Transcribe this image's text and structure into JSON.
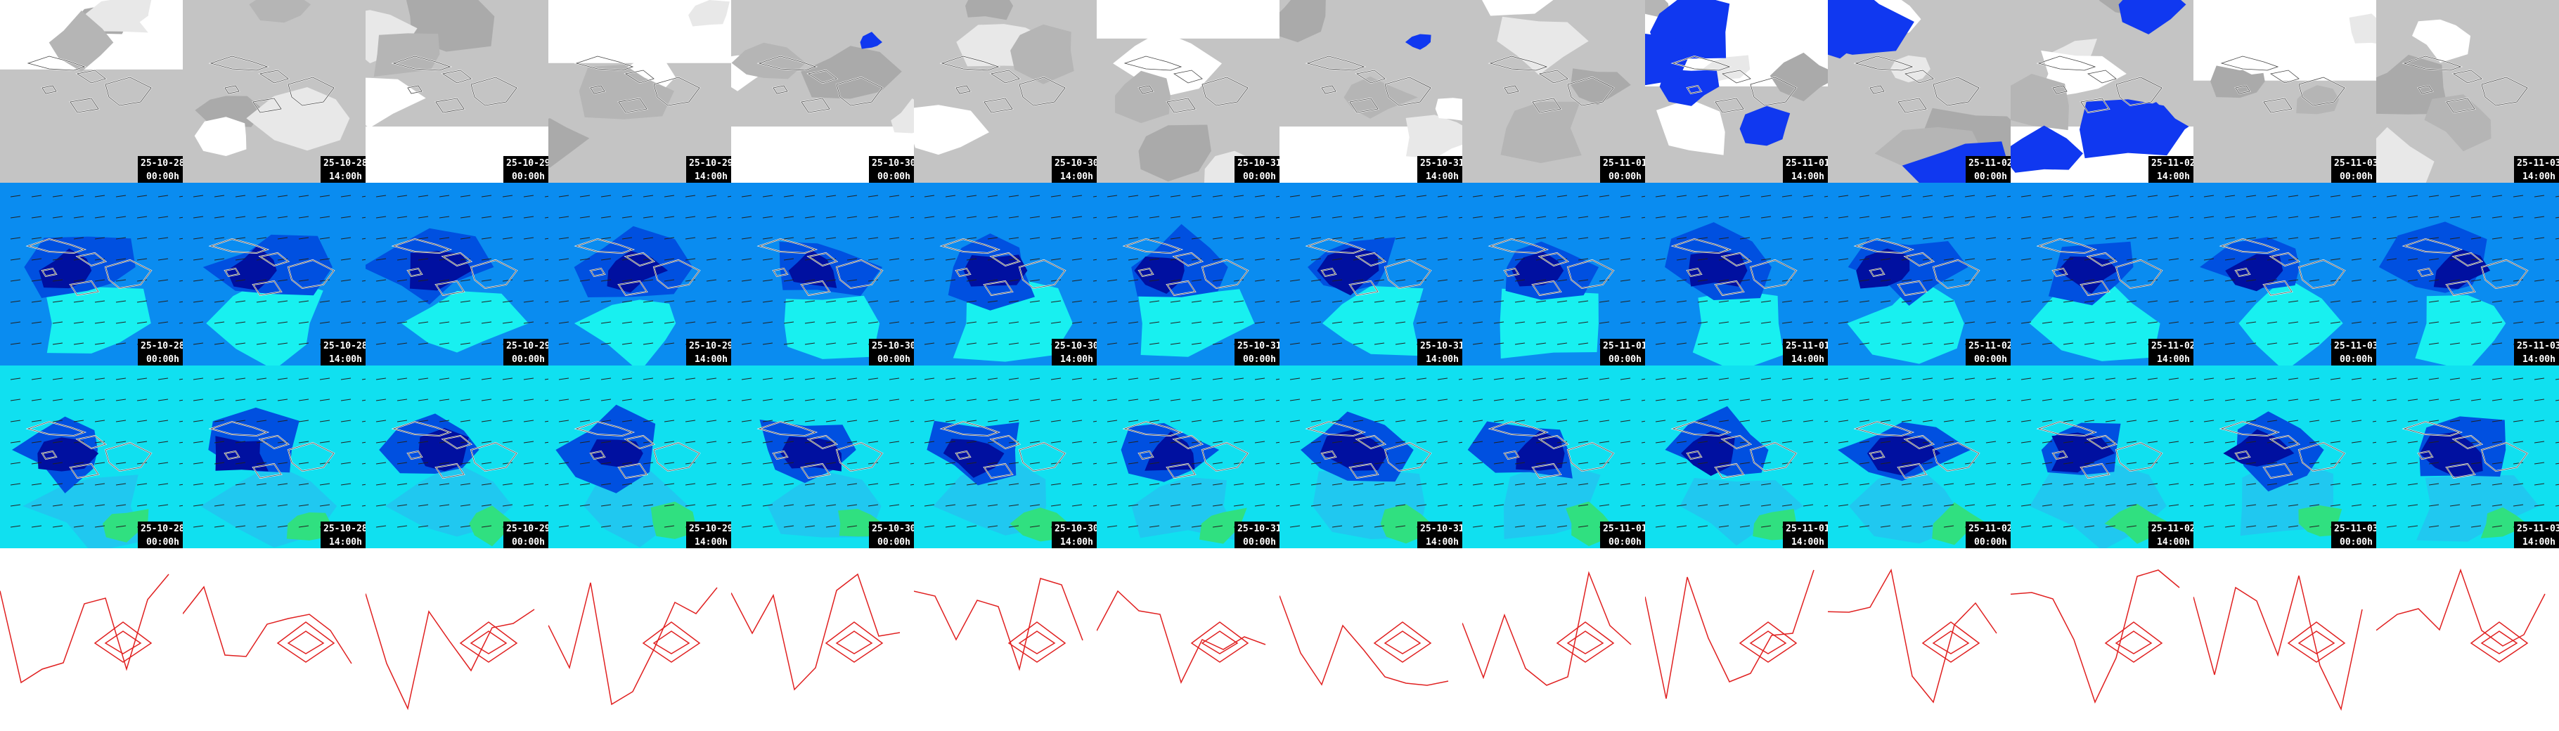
{
  "columns": [
    {
      "date": "25-10-28",
      "time": "00:00h"
    },
    {
      "date": "25-10-28",
      "time": "14:00h"
    },
    {
      "date": "25-10-29",
      "time": "00:00h"
    },
    {
      "date": "25-10-29",
      "time": "14:00h"
    },
    {
      "date": "25-10-30",
      "time": "00:00h"
    },
    {
      "date": "25-10-30",
      "time": "14:00h"
    },
    {
      "date": "25-10-31",
      "time": "00:00h"
    },
    {
      "date": "25-10-31",
      "time": "14:00h"
    },
    {
      "date": "25-11-01",
      "time": "00:00h"
    },
    {
      "date": "25-11-01",
      "time": "14:00h"
    },
    {
      "date": "25-11-02",
      "time": "00:00h"
    },
    {
      "date": "25-11-02",
      "time": "14:00h"
    },
    {
      "date": "25-11-03",
      "time": "00:00h"
    },
    {
      "date": "25-11-03",
      "time": "14:00h"
    }
  ]
}
